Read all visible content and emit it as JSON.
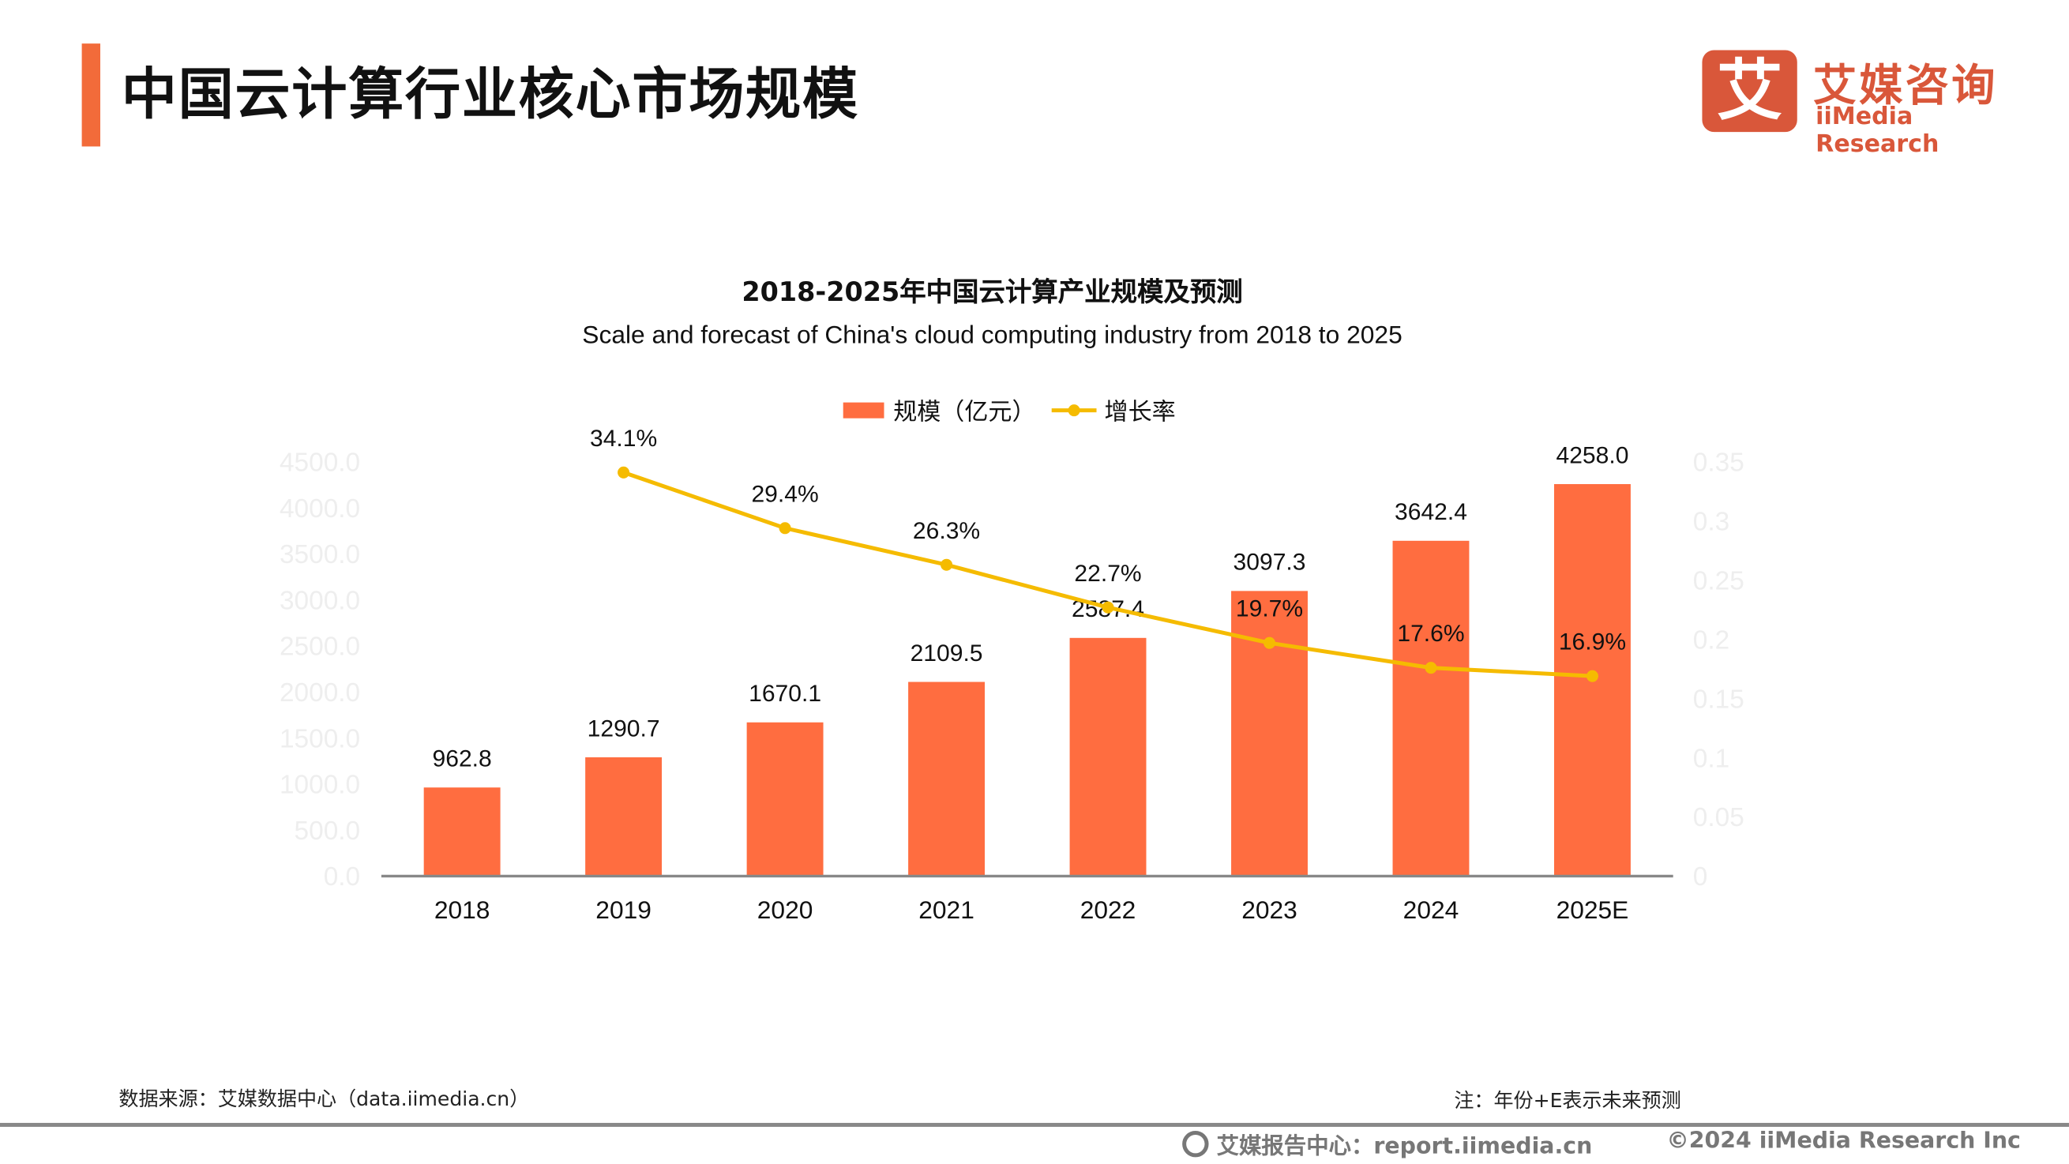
{
  "header": {
    "title": "中国云计算行业核心市场规模"
  },
  "logo": {
    "mark": "艾",
    "name_cn": "艾媒咨询",
    "name_en": "iiMedia Research"
  },
  "colors": {
    "accent": "#f26b3a",
    "bar": "#ff6d40",
    "line": "#f5bb00",
    "logo": "#d9573a"
  },
  "chart_data": {
    "type": "bar",
    "title": "2018-2025年中国云计算产业规模及预测",
    "subtitle": "Scale and forecast of China's cloud computing industry from 2018 to 2025",
    "categories": [
      "2018",
      "2019",
      "2020",
      "2021",
      "2022",
      "2023",
      "2024",
      "2025E"
    ],
    "series": [
      {
        "name": "规模（亿元）",
        "type": "bar",
        "axis": "left",
        "values": [
          962.8,
          1290.7,
          1670.1,
          2109.5,
          2587.4,
          3097.3,
          3642.4,
          4258.0
        ],
        "labels": [
          "962.8",
          "1290.7",
          "1670.1",
          "2109.5",
          "2587.4",
          "3097.3",
          "3642.4",
          "4258.0"
        ]
      },
      {
        "name": "增长率",
        "type": "line",
        "axis": "right",
        "values": [
          null,
          0.341,
          0.294,
          0.263,
          0.227,
          0.197,
          0.176,
          0.169
        ],
        "labels": [
          "",
          "34.1%",
          "29.4%",
          "26.3%",
          "22.7%",
          "19.7%",
          "17.6%",
          "16.9%"
        ]
      }
    ],
    "y_left": {
      "range": [
        0,
        4500
      ],
      "ticks": [
        "0.0",
        "500.0",
        "1000.0",
        "1500.0",
        "2000.0",
        "2500.0",
        "3000.0",
        "3500.0",
        "4000.0",
        "4500.0"
      ]
    },
    "y_right": {
      "range": [
        0,
        0.35
      ],
      "ticks": [
        "0",
        "0.05",
        "0.1",
        "0.15",
        "0.2",
        "0.25",
        "0.3",
        "0.35"
      ]
    },
    "grid": false,
    "legend": "top-center"
  },
  "footer": {
    "source": "数据来源：艾媒数据中心（data.iimedia.cn）",
    "note": "注：年份+E表示未来预测",
    "report": "艾媒报告中心：report.iimedia.cn",
    "copyright": "©2024  iiMedia Research  Inc"
  }
}
